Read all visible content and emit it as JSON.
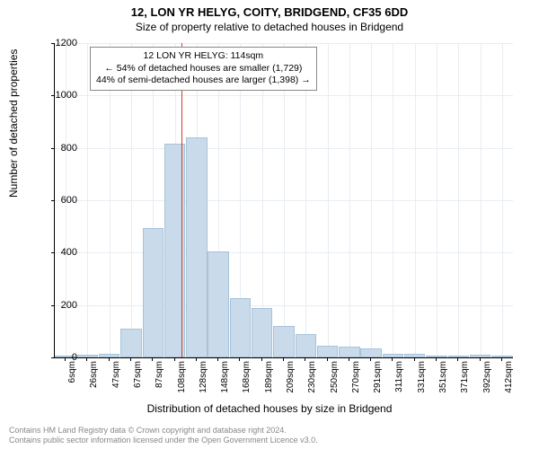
{
  "titles": {
    "main": "12, LON YR HELYG, COITY, BRIDGEND, CF35 6DD",
    "sub": "Size of property relative to detached houses in Bridgend"
  },
  "axes": {
    "y_label": "Number of detached properties",
    "x_label": "Distribution of detached houses by size in Bridgend",
    "y_min": 0,
    "y_max": 1200,
    "y_ticks": [
      0,
      200,
      400,
      600,
      800,
      1000,
      1200
    ],
    "x_ticks": [
      "6sqm",
      "26sqm",
      "47sqm",
      "67sqm",
      "87sqm",
      "108sqm",
      "128sqm",
      "148sqm",
      "168sqm",
      "189sqm",
      "209sqm",
      "230sqm",
      "250sqm",
      "270sqm",
      "291sqm",
      "311sqm",
      "331sqm",
      "351sqm",
      "371sqm",
      "392sqm",
      "412sqm"
    ],
    "tick_fontsize": 10,
    "label_fontsize": 12
  },
  "bars": {
    "values": [
      5,
      10,
      15,
      110,
      495,
      815,
      840,
      405,
      225,
      190,
      120,
      90,
      45,
      40,
      35,
      15,
      15,
      5,
      5,
      10,
      5
    ],
    "fill": "#c9dbea",
    "border": "#a8c2d8"
  },
  "marker": {
    "x_index_after": 5.3,
    "color": "#d43b2a"
  },
  "annotation": {
    "line1": "12 LON YR HELYG: 114sqm",
    "line2": "← 54% of detached houses are smaller (1,729)",
    "line3": "44% of semi-detached houses are larger (1,398) →"
  },
  "attribution": {
    "line1": "Contains HM Land Registry data © Crown copyright and database right 2024.",
    "line2": "Contains public sector information licensed under the Open Government Licence v3.0."
  },
  "colors": {
    "grid": "#e8ecf2",
    "text": "#000000",
    "attrib": "#888888",
    "bg": "#ffffff"
  }
}
